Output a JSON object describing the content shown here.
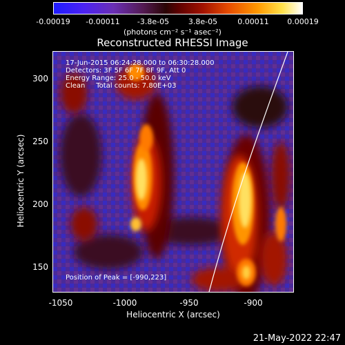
{
  "colorbar": {
    "ticks": [
      "-0.00019",
      "-0.00011",
      "-3.8e-05",
      "3.8e-05",
      "0.00011",
      "0.00019"
    ],
    "units": "(photons cm⁻² s⁻¹ asec⁻²)"
  },
  "title": "Reconstructed RHESSI Image",
  "info": {
    "time": "17-Jun-2015 06:24:28.000 to 06:30:28.000",
    "detectors": "Detectors: 3F 5F 6F 7F 8F 9F, Att 0",
    "energy": "Energy Range: 25.0 - 50.0 keV",
    "method": "Clean     Total counts: 7.80E+03"
  },
  "peak": "Position of Peak = [-990,223]",
  "axes": {
    "xlabel": "Heliocentric X (arcsec)",
    "ylabel": "Heliocentric Y (arcsec)",
    "xticks": [
      "-1050",
      "-1000",
      "-950",
      "-900"
    ],
    "yticks": [
      "300",
      "250",
      "200",
      "150"
    ]
  },
  "timestamp": "21-May-2022 22:47"
}
